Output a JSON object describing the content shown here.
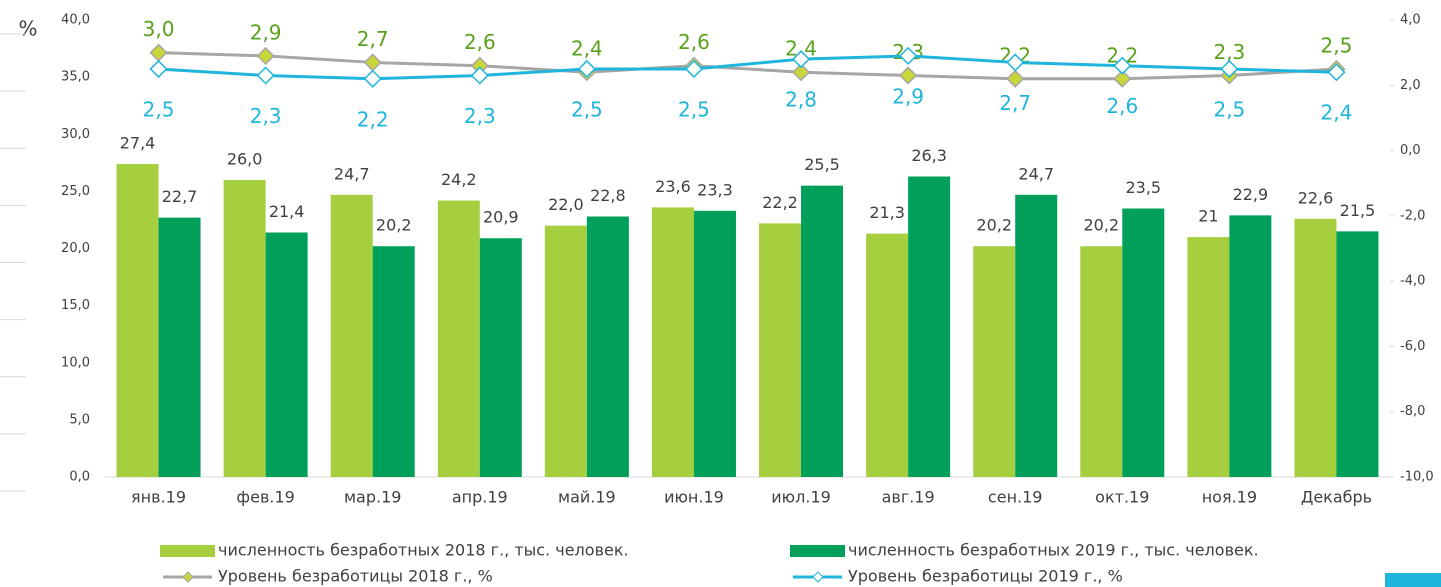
{
  "chart_data": {
    "type": "bar",
    "y_label": "%",
    "categories": [
      "янв.19",
      "фев.19",
      "мар.19",
      "апр.19",
      "май.19",
      "июн.19",
      "июл.19",
      "авг.19",
      "сен.19",
      "окт.19",
      "ноя.19",
      "Декабрь"
    ],
    "ylim": [
      0,
      40
    ],
    "yticks": [
      {
        "value": 0,
        "label": "0,0"
      },
      {
        "value": 5,
        "label": "5,0"
      },
      {
        "value": 10,
        "label": "10,0"
      },
      {
        "value": 15,
        "label": "15,0"
      },
      {
        "value": 20,
        "label": "20,0"
      },
      {
        "value": 25,
        "label": "25,0"
      },
      {
        "value": 30,
        "label": "30,0"
      },
      {
        "value": 35,
        "label": "35,0"
      },
      {
        "value": 40,
        "label": "40,0"
      }
    ],
    "y2lim": [
      -10,
      4
    ],
    "y2ticks": [
      {
        "value": -10,
        "label": "-10,0"
      },
      {
        "value": -8,
        "label": "-8,0"
      },
      {
        "value": -6,
        "label": "-6,0"
      },
      {
        "value": -4,
        "label": "-4,0"
      },
      {
        "value": -2,
        "label": "-2,0"
      },
      {
        "value": 0,
        "label": "0,0"
      },
      {
        "value": 2,
        "label": "2,0"
      },
      {
        "value": 4,
        "label": "4,0"
      }
    ],
    "series": [
      {
        "name": "численность безработных 2018 г., тыс. человек.",
        "type": "bar",
        "color": "#a5cf3e",
        "values": [
          27.4,
          26.0,
          24.7,
          24.2,
          22.0,
          23.6,
          22.2,
          21.3,
          20.2,
          20.2,
          21,
          22.6
        ],
        "value_labels": [
          "27,4",
          "26,0",
          "24,7",
          "24,2",
          "22,0",
          "23,6",
          "22,2",
          "21,3",
          "20,2",
          "20,2",
          "21",
          "22,6"
        ]
      },
      {
        "name": "численность безработных 2019 г., тыс. человек.",
        "type": "bar",
        "color": "#00a05a",
        "values": [
          22.7,
          21.4,
          20.2,
          20.9,
          22.8,
          23.3,
          25.5,
          26.3,
          24.7,
          23.5,
          22.9,
          21.5
        ],
        "value_labels": [
          "22,7",
          "21,4",
          "20,2",
          "20,9",
          "22,8",
          "23,3",
          "25,5",
          "26,3",
          "24,7",
          "23,5",
          "22,9",
          "21,5"
        ]
      },
      {
        "name": "Уровень безработицы  2018 г.,  %",
        "type": "line",
        "axis": "y2",
        "color": "#a6a6a6",
        "marker_color": "#c8d63a",
        "label_color": "#5aa11e",
        "values": [
          3.0,
          2.9,
          2.7,
          2.6,
          2.4,
          2.6,
          2.4,
          2.3,
          2.2,
          2.2,
          2.3,
          2.5
        ],
        "value_labels": [
          "3,0",
          "2,9",
          "2,7",
          "2,6",
          "2,4",
          "2,6",
          "2,4",
          "2,3",
          "2,2",
          "2,2",
          "2,3",
          "2,5"
        ]
      },
      {
        "name": "Уровень безработицы 2019 г., %",
        "type": "line",
        "axis": "y2",
        "color": "#1fb5dc",
        "marker_color": "#ffffff",
        "label_color": "#1fb5dc",
        "values": [
          2.5,
          2.3,
          2.2,
          2.3,
          2.5,
          2.5,
          2.8,
          2.9,
          2.7,
          2.6,
          2.5,
          2.4
        ],
        "value_labels": [
          "2,5",
          "2,3",
          "2,2",
          "2,3",
          "2,5",
          "2,5",
          "2,8",
          "2,9",
          "2,7",
          "2,6",
          "2,5",
          "2,4"
        ]
      }
    ]
  }
}
